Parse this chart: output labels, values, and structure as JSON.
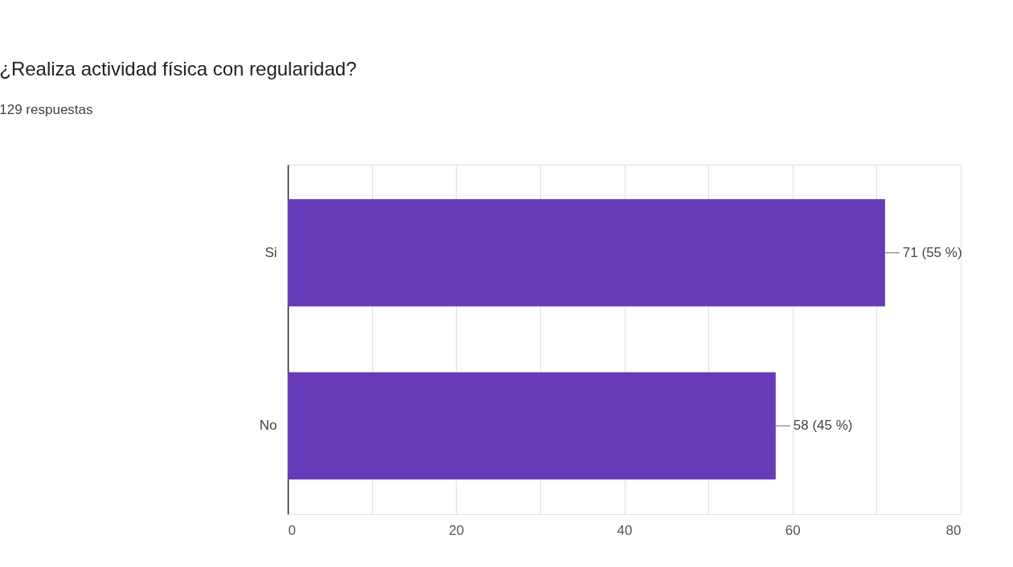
{
  "chart_data": {
    "type": "bar",
    "orientation": "horizontal",
    "title": "¿Realiza actividad física con regularidad?",
    "subtitle": "129 respuestas",
    "categories": [
      "Si",
      "No"
    ],
    "values": [
      71,
      58
    ],
    "value_labels": [
      "71 (55 %)",
      "58 (45 %)"
    ],
    "color": "#673ab7",
    "xlim": [
      0,
      80
    ],
    "xticks": [
      0,
      {
        "value": 10,
        "label": null
      },
      20,
      {
        "value": 30,
        "label": null
      },
      40,
      {
        "value": 50,
        "label": null
      },
      60,
      {
        "value": 70,
        "label": null
      },
      80
    ],
    "grid": "x"
  }
}
